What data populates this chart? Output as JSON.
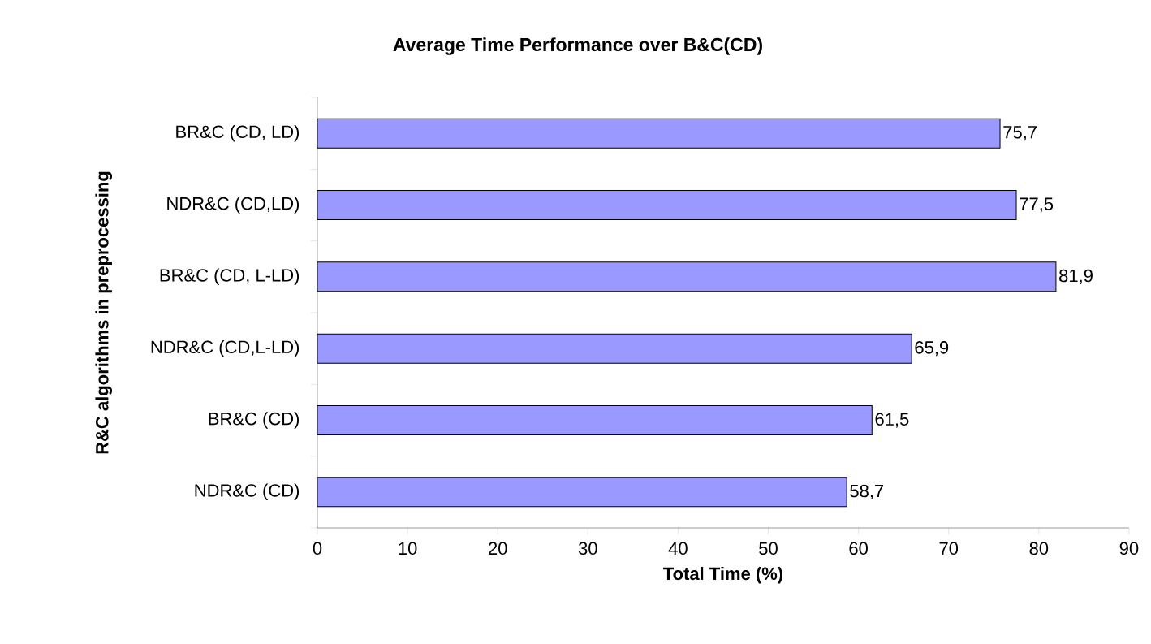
{
  "chart_data": {
    "type": "bar",
    "orientation": "horizontal",
    "title": "Average Time Performance over B&C(CD)",
    "xlabel": "Total Time (%)",
    "ylabel": "R&C algorithms in preprocessing",
    "categories": [
      "BR&C (CD, LD)",
      "NDR&C (CD,LD)",
      "BR&C (CD, L-LD)",
      "NDR&C (CD,L-LD)",
      "BR&C (CD)",
      "NDR&C (CD)"
    ],
    "values": [
      75.7,
      77.5,
      81.9,
      65.9,
      61.5,
      58.7
    ],
    "value_labels": [
      "75,7",
      "77,5",
      "81,9",
      "65,9",
      "61,5",
      "58,7"
    ],
    "color": "#9999ff",
    "xlim": [
      0,
      90
    ],
    "xticks": [
      0,
      10,
      20,
      30,
      40,
      50,
      60,
      70,
      80,
      90
    ],
    "grid": false
  }
}
